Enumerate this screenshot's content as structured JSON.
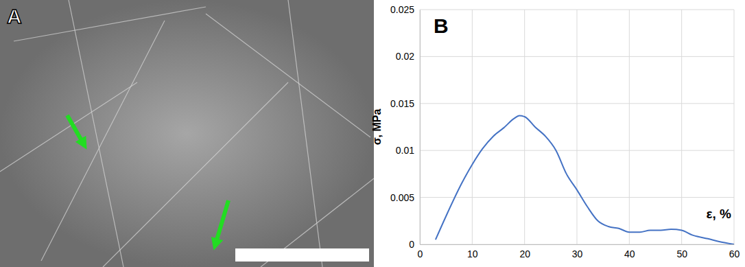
{
  "panel_labels": [
    "A",
    "B"
  ],
  "chart_data": {
    "type": "line",
    "x_label": "ε, %",
    "y_label": "σ, MPa",
    "x": [
      3,
      5,
      8,
      10,
      12,
      14,
      16,
      18,
      19,
      20,
      22,
      24,
      26,
      28,
      30,
      32,
      34,
      36,
      38,
      40,
      42,
      44,
      46,
      48,
      50,
      52,
      55,
      58,
      60
    ],
    "values": [
      0.0005,
      0.003,
      0.0065,
      0.0085,
      0.0102,
      0.0115,
      0.0124,
      0.0134,
      0.0137,
      0.0136,
      0.0125,
      0.0115,
      0.01,
      0.0075,
      0.0058,
      0.004,
      0.0025,
      0.0019,
      0.0017,
      0.0013,
      0.0013,
      0.0015,
      0.0015,
      0.0016,
      0.0015,
      0.001,
      0.0006,
      0.0002,
      0.0
    ],
    "color": "#4472c4",
    "xlim": [
      0,
      60
    ],
    "xticks": [
      0,
      10,
      20,
      30,
      40,
      50,
      60
    ],
    "ylim": [
      0,
      0.025
    ],
    "yticks": [
      0,
      0.005,
      0.01,
      0.015,
      0.02,
      0.025
    ],
    "grid": true
  }
}
